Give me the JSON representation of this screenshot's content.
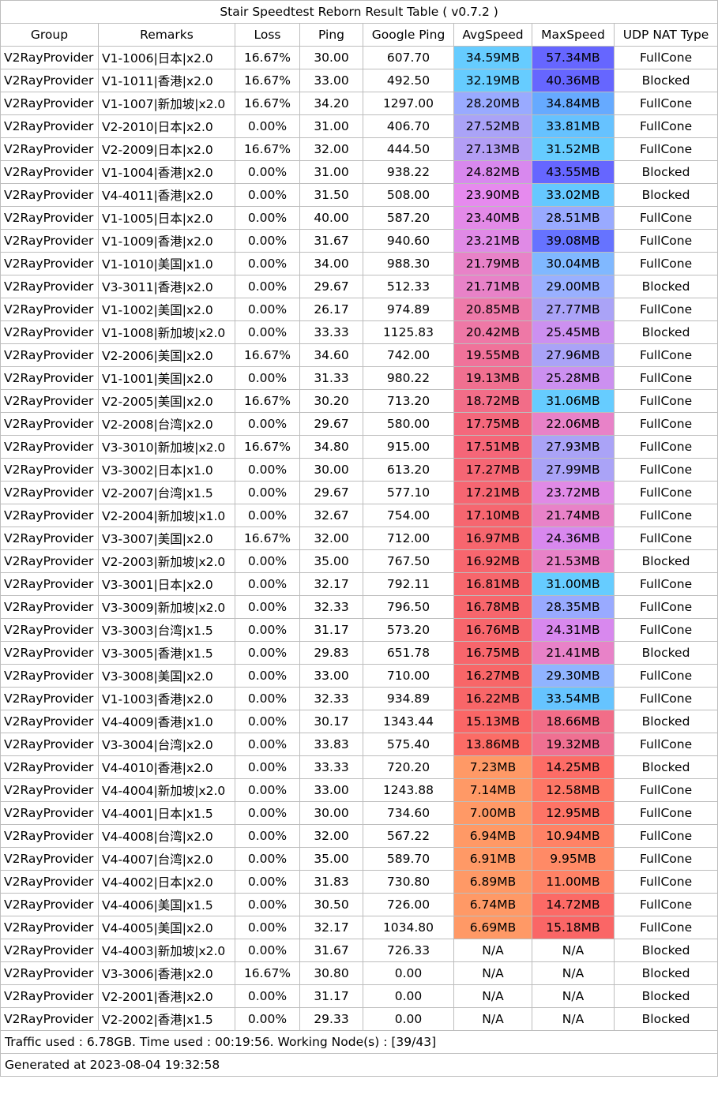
{
  "title": "Stair Speedtest Reborn Result Table ( v0.7.2 )",
  "headers": [
    "Group",
    "Remarks",
    "Loss",
    "Ping",
    "Google Ping",
    "AvgSpeed",
    "MaxSpeed",
    "UDP NAT Type"
  ],
  "rows": [
    {
      "group": "V2RayProvider",
      "remarks": "V1-1006|日本|x2.0",
      "loss": "16.67%",
      "ping": "30.00",
      "google_ping": "607.70",
      "avg": "34.59MB",
      "max": "57.34MB",
      "nat": "FullCone",
      "avg_color": "#66ccff",
      "max_color": "#6666ff"
    },
    {
      "group": "V2RayProvider",
      "remarks": "V1-1011|香港|x2.0",
      "loss": "16.67%",
      "ping": "33.00",
      "google_ping": "492.50",
      "avg": "32.19MB",
      "max": "40.36MB",
      "nat": "Blocked",
      "avg_color": "#66ccff",
      "max_color": "#6666ff"
    },
    {
      "group": "V2RayProvider",
      "remarks": "V1-1007|新加坡|x2.0",
      "loss": "16.67%",
      "ping": "34.20",
      "google_ping": "1297.00",
      "avg": "28.20MB",
      "max": "34.84MB",
      "nat": "FullCone",
      "avg_color": "#99aaff",
      "max_color": "#66aaff"
    },
    {
      "group": "V2RayProvider",
      "remarks": "V2-2010|日本|x2.0",
      "loss": "0.00%",
      "ping": "31.00",
      "google_ping": "406.70",
      "avg": "27.52MB",
      "max": "33.81MB",
      "nat": "FullCone",
      "avg_color": "#aaa3f7",
      "max_color": "#66c2ff"
    },
    {
      "group": "V2RayProvider",
      "remarks": "V2-2009|日本|x2.0",
      "loss": "16.67%",
      "ping": "32.00",
      "google_ping": "444.50",
      "avg": "27.13MB",
      "max": "31.52MB",
      "nat": "FullCone",
      "avg_color": "#b39ef5",
      "max_color": "#66ccff"
    },
    {
      "group": "V2RayProvider",
      "remarks": "V1-1004|香港|x2.0",
      "loss": "0.00%",
      "ping": "31.00",
      "google_ping": "938.22",
      "avg": "24.82MB",
      "max": "43.55MB",
      "nat": "Blocked",
      "avg_color": "#d888ee",
      "max_color": "#6666ff"
    },
    {
      "group": "V2RayProvider",
      "remarks": "V4-4011|香港|x2.0",
      "loss": "0.00%",
      "ping": "31.50",
      "google_ping": "508.00",
      "avg": "23.90MB",
      "max": "33.02MB",
      "nat": "Blocked",
      "avg_color": "#e68aee",
      "max_color": "#66c8ff"
    },
    {
      "group": "V2RayProvider",
      "remarks": "V1-1005|日本|x2.0",
      "loss": "0.00%",
      "ping": "40.00",
      "google_ping": "587.20",
      "avg": "23.40MB",
      "max": "28.51MB",
      "nat": "FullCone",
      "avg_color": "#e38ae8",
      "max_color": "#99aaff"
    },
    {
      "group": "V2RayProvider",
      "remarks": "V1-1009|香港|x2.0",
      "loss": "0.00%",
      "ping": "31.67",
      "google_ping": "940.60",
      "avg": "23.21MB",
      "max": "39.08MB",
      "nat": "FullCone",
      "avg_color": "#e08ae6",
      "max_color": "#6673ff"
    },
    {
      "group": "V2RayProvider",
      "remarks": "V1-1010|美国|x1.0",
      "loss": "0.00%",
      "ping": "34.00",
      "google_ping": "988.30",
      "avg": "21.79MB",
      "max": "30.04MB",
      "nat": "FullCone",
      "avg_color": "#e882c8",
      "max_color": "#80b8ff"
    },
    {
      "group": "V2RayProvider",
      "remarks": "V3-3011|香港|x2.0",
      "loss": "0.00%",
      "ping": "29.67",
      "google_ping": "512.33",
      "avg": "21.71MB",
      "max": "29.00MB",
      "nat": "Blocked",
      "avg_color": "#e882c8",
      "max_color": "#99b0ff"
    },
    {
      "group": "V2RayProvider",
      "remarks": "V1-1002|美国|x2.0",
      "loss": "0.00%",
      "ping": "26.17",
      "google_ping": "974.89",
      "avg": "20.85MB",
      "max": "27.77MB",
      "nat": "FullCone",
      "avg_color": "#ee7aaa",
      "max_color": "#aaa3f7"
    },
    {
      "group": "V2RayProvider",
      "remarks": "V1-1008|新加坡|x2.0",
      "loss": "0.00%",
      "ping": "33.33",
      "google_ping": "1125.83",
      "avg": "20.42MB",
      "max": "25.45MB",
      "nat": "Blocked",
      "avg_color": "#ee78a6",
      "max_color": "#cc90f0"
    },
    {
      "group": "V2RayProvider",
      "remarks": "V2-2006|美国|x2.0",
      "loss": "16.67%",
      "ping": "34.60",
      "google_ping": "742.00",
      "avg": "19.55MB",
      "max": "27.96MB",
      "nat": "FullCone",
      "avg_color": "#f0729a",
      "max_color": "#aaa3f7"
    },
    {
      "group": "V2RayProvider",
      "remarks": "V1-1001|美国|x2.0",
      "loss": "0.00%",
      "ping": "31.33",
      "google_ping": "980.22",
      "avg": "19.13MB",
      "max": "25.28MB",
      "nat": "FullCone",
      "avg_color": "#f07090",
      "max_color": "#cc90f0"
    },
    {
      "group": "V2RayProvider",
      "remarks": "V2-2005|美国|x2.0",
      "loss": "16.67%",
      "ping": "30.20",
      "google_ping": "713.20",
      "avg": "18.72MB",
      "max": "31.06MB",
      "nat": "FullCone",
      "avg_color": "#f26d88",
      "max_color": "#66ccff"
    },
    {
      "group": "V2RayProvider",
      "remarks": "V2-2008|台湾|x2.0",
      "loss": "0.00%",
      "ping": "29.67",
      "google_ping": "580.00",
      "avg": "17.75MB",
      "max": "22.06MB",
      "nat": "FullCone",
      "avg_color": "#f4687c",
      "max_color": "#e882c8"
    },
    {
      "group": "V2RayProvider",
      "remarks": "V3-3010|新加坡|x2.0",
      "loss": "16.67%",
      "ping": "34.80",
      "google_ping": "915.00",
      "avg": "17.51MB",
      "max": "27.93MB",
      "nat": "FullCone",
      "avg_color": "#f56678",
      "max_color": "#aaa3f7"
    },
    {
      "group": "V2RayProvider",
      "remarks": "V3-3002|日本|x1.0",
      "loss": "0.00%",
      "ping": "30.00",
      "google_ping": "613.20",
      "avg": "17.27MB",
      "max": "27.99MB",
      "nat": "FullCone",
      "avg_color": "#f56674",
      "max_color": "#aaa3f7"
    },
    {
      "group": "V2RayProvider",
      "remarks": "V2-2007|台湾|x1.5",
      "loss": "0.00%",
      "ping": "29.67",
      "google_ping": "577.10",
      "avg": "17.21MB",
      "max": "23.72MB",
      "nat": "FullCone",
      "avg_color": "#f66672",
      "max_color": "#e08ae6"
    },
    {
      "group": "V2RayProvider",
      "remarks": "V2-2004|新加坡|x1.0",
      "loss": "0.00%",
      "ping": "32.67",
      "google_ping": "754.00",
      "avg": "17.10MB",
      "max": "21.74MB",
      "nat": "FullCone",
      "avg_color": "#f66670",
      "max_color": "#e882c8"
    },
    {
      "group": "V2RayProvider",
      "remarks": "V3-3007|美国|x2.0",
      "loss": "16.67%",
      "ping": "32.00",
      "google_ping": "712.00",
      "avg": "16.97MB",
      "max": "24.36MB",
      "nat": "FullCone",
      "avg_color": "#f7666e",
      "max_color": "#d888ee"
    },
    {
      "group": "V2RayProvider",
      "remarks": "V2-2003|新加坡|x2.0",
      "loss": "0.00%",
      "ping": "35.00",
      "google_ping": "767.50",
      "avg": "16.92MB",
      "max": "21.53MB",
      "nat": "Blocked",
      "avg_color": "#f7666e",
      "max_color": "#e882c8"
    },
    {
      "group": "V2RayProvider",
      "remarks": "V3-3001|日本|x2.0",
      "loss": "0.00%",
      "ping": "32.17",
      "google_ping": "792.11",
      "avg": "16.81MB",
      "max": "31.00MB",
      "nat": "FullCone",
      "avg_color": "#f7666c",
      "max_color": "#66ccff"
    },
    {
      "group": "V2RayProvider",
      "remarks": "V3-3009|新加坡|x2.0",
      "loss": "0.00%",
      "ping": "32.33",
      "google_ping": "796.50",
      "avg": "16.78MB",
      "max": "28.35MB",
      "nat": "FullCone",
      "avg_color": "#f7666c",
      "max_color": "#99aaff"
    },
    {
      "group": "V2RayProvider",
      "remarks": "V3-3003|台湾|x1.5",
      "loss": "0.00%",
      "ping": "31.17",
      "google_ping": "573.20",
      "avg": "16.76MB",
      "max": "24.31MB",
      "nat": "FullCone",
      "avg_color": "#f7666c",
      "max_color": "#d888ee"
    },
    {
      "group": "V2RayProvider",
      "remarks": "V3-3005|香港|x1.5",
      "loss": "0.00%",
      "ping": "29.83",
      "google_ping": "651.78",
      "avg": "16.75MB",
      "max": "21.41MB",
      "nat": "Blocked",
      "avg_color": "#f7666c",
      "max_color": "#e882c8"
    },
    {
      "group": "V2RayProvider",
      "remarks": "V3-3008|美国|x2.0",
      "loss": "0.00%",
      "ping": "33.00",
      "google_ping": "710.00",
      "avg": "16.27MB",
      "max": "29.30MB",
      "nat": "FullCone",
      "avg_color": "#f86668",
      "max_color": "#90b4ff"
    },
    {
      "group": "V2RayProvider",
      "remarks": "V1-1003|香港|x2.0",
      "loss": "0.00%",
      "ping": "32.33",
      "google_ping": "934.89",
      "avg": "16.22MB",
      "max": "33.54MB",
      "nat": "FullCone",
      "avg_color": "#f86668",
      "max_color": "#66c4ff"
    },
    {
      "group": "V2RayProvider",
      "remarks": "V4-4009|香港|x1.0",
      "loss": "0.00%",
      "ping": "30.17",
      "google_ping": "1343.44",
      "avg": "15.13MB",
      "max": "18.66MB",
      "nat": "Blocked",
      "avg_color": "#fa6666",
      "max_color": "#f26d88"
    },
    {
      "group": "V2RayProvider",
      "remarks": "V3-3004|台湾|x2.0",
      "loss": "0.00%",
      "ping": "33.83",
      "google_ping": "575.40",
      "avg": "13.86MB",
      "max": "19.32MB",
      "nat": "FullCone",
      "avg_color": "#fc6c66",
      "max_color": "#f07092"
    },
    {
      "group": "V2RayProvider",
      "remarks": "V4-4010|香港|x2.0",
      "loss": "0.00%",
      "ping": "33.33",
      "google_ping": "720.20",
      "avg": "7.23MB",
      "max": "14.25MB",
      "nat": "Blocked",
      "avg_color": "#ff9966",
      "max_color": "#fd6c66"
    },
    {
      "group": "V2RayProvider",
      "remarks": "V4-4004|新加坡|x2.0",
      "loss": "0.00%",
      "ping": "33.00",
      "google_ping": "1243.88",
      "avg": "7.14MB",
      "max": "12.58MB",
      "nat": "FullCone",
      "avg_color": "#ff9966",
      "max_color": "#fe7766"
    },
    {
      "group": "V2RayProvider",
      "remarks": "V4-4001|日本|x1.5",
      "loss": "0.00%",
      "ping": "30.00",
      "google_ping": "734.60",
      "avg": "7.00MB",
      "max": "12.95MB",
      "nat": "FullCone",
      "avg_color": "#ff9966",
      "max_color": "#fe7466"
    },
    {
      "group": "V2RayProvider",
      "remarks": "V4-4008|台湾|x2.0",
      "loss": "0.00%",
      "ping": "32.00",
      "google_ping": "567.22",
      "avg": "6.94MB",
      "max": "10.94MB",
      "nat": "FullCone",
      "avg_color": "#ff9966",
      "max_color": "#ff8266"
    },
    {
      "group": "V2RayProvider",
      "remarks": "V4-4007|台湾|x2.0",
      "loss": "0.00%",
      "ping": "35.00",
      "google_ping": "589.70",
      "avg": "6.91MB",
      "max": "9.95MB",
      "nat": "FullCone",
      "avg_color": "#ff9966",
      "max_color": "#ff8a66"
    },
    {
      "group": "V2RayProvider",
      "remarks": "V4-4002|日本|x2.0",
      "loss": "0.00%",
      "ping": "31.83",
      "google_ping": "730.80",
      "avg": "6.89MB",
      "max": "11.00MB",
      "nat": "FullCone",
      "avg_color": "#ff9966",
      "max_color": "#ff8266"
    },
    {
      "group": "V2RayProvider",
      "remarks": "V4-4006|美国|x1.5",
      "loss": "0.00%",
      "ping": "30.50",
      "google_ping": "726.00",
      "avg": "6.74MB",
      "max": "14.72MB",
      "nat": "FullCone",
      "avg_color": "#ff9966",
      "max_color": "#fc6a66"
    },
    {
      "group": "V2RayProvider",
      "remarks": "V4-4005|美国|x2.0",
      "loss": "0.00%",
      "ping": "32.17",
      "google_ping": "1034.80",
      "avg": "6.69MB",
      "max": "15.18MB",
      "nat": "FullCone",
      "avg_color": "#ff9966",
      "max_color": "#fa6666"
    },
    {
      "group": "V2RayProvider",
      "remarks": "V4-4003|新加坡|x2.0",
      "loss": "0.00%",
      "ping": "31.67",
      "google_ping": "726.33",
      "avg": "N/A",
      "max": "N/A",
      "nat": "Blocked",
      "avg_color": "",
      "max_color": ""
    },
    {
      "group": "V2RayProvider",
      "remarks": "V3-3006|香港|x2.0",
      "loss": "16.67%",
      "ping": "30.80",
      "google_ping": "0.00",
      "avg": "N/A",
      "max": "N/A",
      "nat": "Blocked",
      "avg_color": "",
      "max_color": ""
    },
    {
      "group": "V2RayProvider",
      "remarks": "V2-2001|香港|x2.0",
      "loss": "0.00%",
      "ping": "31.17",
      "google_ping": "0.00",
      "avg": "N/A",
      "max": "N/A",
      "nat": "Blocked",
      "avg_color": "",
      "max_color": ""
    },
    {
      "group": "V2RayProvider",
      "remarks": "V2-2002|香港|x1.5",
      "loss": "0.00%",
      "ping": "29.33",
      "google_ping": "0.00",
      "avg": "N/A",
      "max": "N/A",
      "nat": "Blocked",
      "avg_color": "",
      "max_color": ""
    }
  ],
  "traffic_line": "Traffic used : 6.78GB. Time used : 00:19:56. Working Node(s) : [39/43]",
  "generated_line": "Generated at 2023-08-04 19:32:58"
}
